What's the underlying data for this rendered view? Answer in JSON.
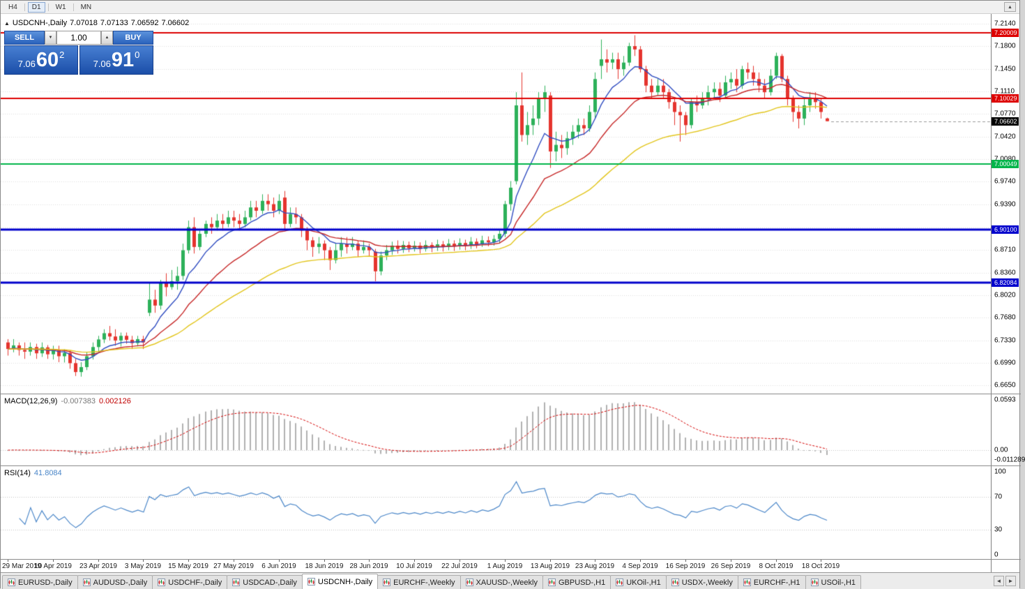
{
  "toolbar": {
    "periods": [
      "H4",
      "D1",
      "W1",
      "MN"
    ],
    "active_period": "D1",
    "scroll_up_icon": "▲"
  },
  "chart_header": {
    "toggle_icon": "▲",
    "symbol": "USDCNH-,Daily",
    "open": "7.07018",
    "high": "7.07133",
    "low": "7.06592",
    "close": "7.06602"
  },
  "trade_panel": {
    "sell_label": "SELL",
    "buy_label": "BUY",
    "volume": "1.00",
    "volume_down_icon": "▼",
    "volume_up_icon": "▲",
    "sell_price": {
      "prefix": "7.06",
      "big": "60",
      "sup": "2"
    },
    "buy_price": {
      "prefix": "7.06",
      "big": "91",
      "sup": "0"
    }
  },
  "price_axis": {
    "labels": [
      "7.2140",
      "7.1800",
      "7.1450",
      "7.1110",
      "7.0770",
      "7.0420",
      "7.0080",
      "6.9740",
      "6.9390",
      "6.8710",
      "6.8360",
      "6.8020",
      "6.7680",
      "6.7330",
      "6.6990",
      "6.6650"
    ],
    "grid_values": [
      7.214,
      7.18,
      7.145,
      7.111,
      7.077,
      7.042,
      7.008,
      6.974,
      6.939,
      6.905,
      6.871,
      6.836,
      6.802,
      6.768,
      6.733,
      6.699,
      6.665
    ],
    "min": 6.665,
    "max": 7.214
  },
  "horizontal_lines": [
    {
      "value": 7.20009,
      "label": "7.20009",
      "color": "#dd0000",
      "width": 2
    },
    {
      "value": 7.10029,
      "label": "7.10029",
      "color": "#dd0000",
      "width": 2
    },
    {
      "value": 7.00049,
      "label": "7.00049",
      "color": "#00b44a",
      "width": 2
    },
    {
      "value": 6.901,
      "label": "6.90100",
      "color": "#0000cc",
      "width": 3
    },
    {
      "value": 6.82084,
      "label": "6.82084",
      "color": "#0000cc",
      "width": 3
    }
  ],
  "current_price": {
    "value": 7.06602,
    "label": "7.06602",
    "bg": "#000000"
  },
  "chart_data": {
    "type": "candlestick",
    "symbol": "USDCNH",
    "timeframe": "Daily",
    "title": "USDCNH-,Daily",
    "up_color": "#2db15a",
    "down_color": "#e5342e",
    "grid_color": "#dcdcdc",
    "x_labels": [
      "29 Mar 2019",
      "10 Apr 2019",
      "23 Apr 2019",
      "3 May 2019",
      "15 May 2019",
      "27 May 2019",
      "6 Jun 2019",
      "18 Jun 2019",
      "28 Jun 2019",
      "10 Jul 2019",
      "22 Jul 2019",
      "1 Aug 2019",
      "13 Aug 2019",
      "23 Aug 2019",
      "4 Sep 2019",
      "16 Sep 2019",
      "26 Sep 2019",
      "8 Oct 2019",
      "18 Oct 2019"
    ],
    "x_label_step": 8,
    "ylim": [
      6.665,
      7.214
    ],
    "moving_averages": [
      {
        "period": 8,
        "color": "#2f4cc0"
      },
      {
        "period": 20,
        "color": "#c62828"
      },
      {
        "period": 45,
        "color": "#e2c51c"
      }
    ],
    "candles": [
      [
        6.73,
        6.735,
        6.71,
        6.72
      ],
      [
        6.72,
        6.735,
        6.715,
        6.7255
      ],
      [
        6.7255,
        6.73,
        6.71,
        6.7185
      ],
      [
        6.7185,
        6.73,
        6.705,
        6.716
      ],
      [
        6.716,
        6.73,
        6.71,
        6.723
      ],
      [
        6.723,
        6.728,
        6.705,
        6.7135
      ],
      [
        6.7135,
        6.73,
        6.708,
        6.7225
      ],
      [
        6.7225,
        6.726,
        6.705,
        6.712
      ],
      [
        6.712,
        6.725,
        6.704,
        6.7185
      ],
      [
        6.7185,
        6.725,
        6.7,
        6.709
      ],
      [
        6.709,
        6.7195,
        6.6995,
        6.714
      ],
      [
        6.714,
        6.718,
        6.69,
        6.6985
      ],
      [
        6.6985,
        6.705,
        6.679,
        6.685
      ],
      [
        6.685,
        6.7,
        6.678,
        6.6925
      ],
      [
        6.6925,
        6.715,
        6.688,
        6.709
      ],
      [
        6.709,
        6.73,
        6.704,
        6.723
      ],
      [
        6.723,
        6.74,
        6.715,
        6.7345
      ],
      [
        6.7345,
        6.75,
        6.729,
        6.744
      ],
      [
        6.744,
        6.755,
        6.733,
        6.739
      ],
      [
        6.739,
        6.75,
        6.725,
        6.733
      ],
      [
        6.733,
        6.745,
        6.724,
        6.74
      ],
      [
        6.74,
        6.745,
        6.728,
        6.734
      ],
      [
        6.734,
        6.74,
        6.72,
        6.729
      ],
      [
        6.729,
        6.74,
        6.724,
        6.735
      ],
      [
        6.735,
        6.74,
        6.72,
        6.73
      ],
      [
        6.775,
        6.82,
        6.77,
        6.795
      ],
      [
        6.795,
        6.81,
        6.775,
        6.786
      ],
      [
        6.786,
        6.825,
        6.78,
        6.82
      ],
      [
        6.82,
        6.835,
        6.8,
        6.814
      ],
      [
        6.814,
        6.84,
        6.81,
        6.823
      ],
      [
        6.823,
        6.845,
        6.81,
        6.831
      ],
      [
        6.831,
        6.88,
        6.825,
        6.87
      ],
      [
        6.87,
        6.915,
        6.865,
        6.905
      ],
      [
        6.905,
        6.92,
        6.865,
        6.875
      ],
      [
        6.875,
        6.9,
        6.87,
        6.895
      ],
      [
        6.895,
        6.915,
        6.89,
        6.91
      ],
      [
        6.91,
        6.92,
        6.895,
        6.905
      ],
      [
        6.905,
        6.925,
        6.9,
        6.915
      ],
      [
        6.915,
        6.925,
        6.9,
        6.91
      ],
      [
        6.91,
        6.93,
        6.905,
        6.92
      ],
      [
        6.92,
        6.93,
        6.905,
        6.915
      ],
      [
        6.915,
        6.925,
        6.9,
        6.91
      ],
      [
        6.91,
        6.93,
        6.905,
        6.92
      ],
      [
        6.92,
        6.945,
        6.915,
        6.935
      ],
      [
        6.935,
        6.945,
        6.92,
        6.93
      ],
      [
        6.93,
        6.955,
        6.925,
        6.945
      ],
      [
        6.945,
        6.955,
        6.93,
        6.94
      ],
      [
        6.94,
        6.95,
        6.92,
        6.93
      ],
      [
        6.93,
        6.955,
        6.925,
        6.945
      ],
      [
        6.95,
        6.96,
        6.9,
        6.91
      ],
      [
        6.91,
        6.935,
        6.905,
        6.925
      ],
      [
        6.925,
        6.935,
        6.91,
        6.92
      ],
      [
        6.92,
        6.925,
        6.89,
        6.9
      ],
      [
        6.9,
        6.905,
        6.87,
        6.885
      ],
      [
        6.885,
        6.89,
        6.86,
        6.875
      ],
      [
        6.875,
        6.89,
        6.865,
        6.88
      ],
      [
        6.88,
        6.885,
        6.855,
        6.87
      ],
      [
        6.87,
        6.875,
        6.84,
        6.855
      ],
      [
        6.855,
        6.88,
        6.85,
        6.87
      ],
      [
        6.87,
        6.89,
        6.86,
        6.88
      ],
      [
        6.88,
        6.89,
        6.865,
        6.875
      ],
      [
        6.875,
        6.89,
        6.87,
        6.88
      ],
      [
        6.88,
        6.885,
        6.86,
        6.87
      ],
      [
        6.87,
        6.885,
        6.865,
        6.875
      ],
      [
        6.875,
        6.88,
        6.86,
        6.87
      ],
      [
        6.868,
        6.872,
        6.823,
        6.838
      ],
      [
        6.838,
        6.868,
        6.832,
        6.862
      ],
      [
        6.862,
        6.878,
        6.855,
        6.87
      ],
      [
        6.87,
        6.883,
        6.863,
        6.877
      ],
      [
        6.877,
        6.885,
        6.865,
        6.872
      ],
      [
        6.872,
        6.884,
        6.866,
        6.878
      ],
      [
        6.878,
        6.883,
        6.867,
        6.873
      ],
      [
        6.873,
        6.884,
        6.868,
        6.877
      ],
      [
        6.877,
        6.882,
        6.865,
        6.872
      ],
      [
        6.872,
        6.885,
        6.868,
        6.878
      ],
      [
        6.878,
        6.882,
        6.867,
        6.874
      ],
      [
        6.874,
        6.886,
        6.869,
        6.879
      ],
      [
        6.879,
        6.884,
        6.868,
        6.875
      ],
      [
        6.875,
        6.887,
        6.87,
        6.88
      ],
      [
        6.88,
        6.885,
        6.869,
        6.876
      ],
      [
        6.876,
        6.888,
        6.871,
        6.881
      ],
      [
        6.881,
        6.886,
        6.87,
        6.877
      ],
      [
        6.877,
        6.89,
        6.872,
        6.883
      ],
      [
        6.883,
        6.888,
        6.873,
        6.879
      ],
      [
        6.879,
        6.892,
        6.875,
        6.885
      ],
      [
        6.885,
        6.891,
        6.876,
        6.882
      ],
      [
        6.882,
        6.893,
        6.877,
        6.887
      ],
      [
        6.887,
        6.9,
        6.88,
        6.895
      ],
      [
        6.895,
        6.945,
        6.89,
        6.94
      ],
      [
        6.94,
        6.975,
        6.93,
        6.965
      ],
      [
        6.975,
        7.11,
        6.97,
        7.09
      ],
      [
        7.09,
        7.14,
        7.035,
        7.045
      ],
      [
        7.045,
        7.08,
        7.03,
        7.06
      ],
      [
        7.06,
        7.09,
        7.045,
        7.07
      ],
      [
        7.07,
        7.11,
        7.06,
        7.1
      ],
      [
        7.1,
        7.12,
        7.08,
        7.11
      ],
      [
        7.105,
        7.11,
        6.995,
        7.02
      ],
      [
        7.02,
        7.05,
        7.005,
        7.03
      ],
      [
        7.03,
        7.045,
        7.01,
        7.025
      ],
      [
        7.025,
        7.05,
        7.015,
        7.04
      ],
      [
        7.04,
        7.06,
        7.03,
        7.05
      ],
      [
        7.05,
        7.07,
        7.04,
        7.06
      ],
      [
        7.06,
        7.07,
        7.045,
        7.055
      ],
      [
        7.055,
        7.09,
        7.05,
        7.08
      ],
      [
        7.08,
        7.14,
        7.07,
        7.13
      ],
      [
        7.15,
        7.19,
        7.13,
        7.16
      ],
      [
        7.16,
        7.175,
        7.14,
        7.155
      ],
      [
        7.155,
        7.17,
        7.145,
        7.16
      ],
      [
        7.16,
        7.17,
        7.13,
        7.145
      ],
      [
        7.145,
        7.165,
        7.135,
        7.155
      ],
      [
        7.155,
        7.185,
        7.15,
        7.18
      ],
      [
        7.18,
        7.1965,
        7.165,
        7.175
      ],
      [
        7.175,
        7.18,
        7.14,
        7.145
      ],
      [
        7.145,
        7.15,
        7.11,
        7.12
      ],
      [
        7.12,
        7.13,
        7.1,
        7.11
      ],
      [
        7.11,
        7.13,
        7.105,
        7.12
      ],
      [
        7.12,
        7.13,
        7.1,
        7.11
      ],
      [
        7.11,
        7.115,
        7.085,
        7.095
      ],
      [
        7.095,
        7.1,
        7.06,
        7.08
      ],
      [
        7.08,
        7.09,
        7.035,
        7.075
      ],
      [
        7.075,
        7.08,
        7.045,
        7.06
      ],
      [
        7.06,
        7.1,
        7.055,
        7.095
      ],
      [
        7.095,
        7.105,
        7.08,
        7.09
      ],
      [
        7.09,
        7.11,
        7.085,
        7.1
      ],
      [
        7.1,
        7.12,
        7.09,
        7.11
      ],
      [
        7.11,
        7.125,
        7.1,
        7.115
      ],
      [
        7.115,
        7.125,
        7.095,
        7.105
      ],
      [
        7.105,
        7.135,
        7.1,
        7.125
      ],
      [
        7.125,
        7.14,
        7.115,
        7.13
      ],
      [
        7.13,
        7.145,
        7.11,
        7.12
      ],
      [
        7.12,
        7.15,
        7.115,
        7.145
      ],
      [
        7.145,
        7.155,
        7.13,
        7.14
      ],
      [
        7.14,
        7.15,
        7.12,
        7.13
      ],
      [
        7.13,
        7.14,
        7.11,
        7.12
      ],
      [
        7.12,
        7.13,
        7.1,
        7.11
      ],
      [
        7.11,
        7.145,
        7.105,
        7.135
      ],
      [
        7.135,
        7.17,
        7.13,
        7.165
      ],
      [
        7.165,
        7.168,
        7.125,
        7.13
      ],
      [
        7.13,
        7.135,
        7.09,
        7.1
      ],
      [
        7.1,
        7.105,
        7.065,
        7.08
      ],
      [
        7.08,
        7.09,
        7.055,
        7.07
      ],
      [
        7.07,
        7.1,
        7.06,
        7.09
      ],
      [
        7.09,
        7.11,
        7.08,
        7.1
      ],
      [
        7.1,
        7.11,
        7.085,
        7.095
      ],
      [
        7.095,
        7.1,
        7.07,
        7.08
      ],
      [
        7.0702,
        7.0713,
        7.0659,
        7.066
      ]
    ],
    "indicators": {
      "macd": {
        "label": "MACD(12,26,9)",
        "fast": 12,
        "slow": 26,
        "signal": 9,
        "main_value": "-0.007383",
        "signal_value": "0.002126",
        "hist_color": "#b0b0b0",
        "signal_color": "#d40000",
        "axis_labels": [
          {
            "text": "0.0593",
            "value": 0.0593
          },
          {
            "text": "0.00",
            "value": 0
          },
          {
            "text": "-0.011289",
            "value": -0.011289
          }
        ]
      },
      "rsi": {
        "label": "RSI(14)",
        "period": 14,
        "value": "41.8084",
        "color": "#4a86c8",
        "levels": [
          70,
          30
        ],
        "axis_labels": [
          {
            "text": "100",
            "value": 100
          },
          {
            "text": "70",
            "value": 70
          },
          {
            "text": "30",
            "value": 30
          },
          {
            "text": "0",
            "value": 0
          }
        ]
      }
    }
  },
  "tab_bar": {
    "active_tab": "USDCNH-,Daily",
    "scroll_left_icon": "◄",
    "scroll_right_icon": "►",
    "tabs": [
      {
        "label": "EURUSD-,Daily"
      },
      {
        "label": "AUDUSD-,Daily"
      },
      {
        "label": "USDCHF-,Daily"
      },
      {
        "label": "USDCAD-,Daily"
      },
      {
        "label": "USDCNH-,Daily"
      },
      {
        "label": "EURCHF-,Weekly"
      },
      {
        "label": "XAUUSD-,Weekly"
      },
      {
        "label": "GBPUSD-,H1"
      },
      {
        "label": "UKOil-,H1"
      },
      {
        "label": "USDX-,Weekly"
      },
      {
        "label": "EURCHF-,H1"
      },
      {
        "label": "USOil-,H1"
      }
    ]
  }
}
